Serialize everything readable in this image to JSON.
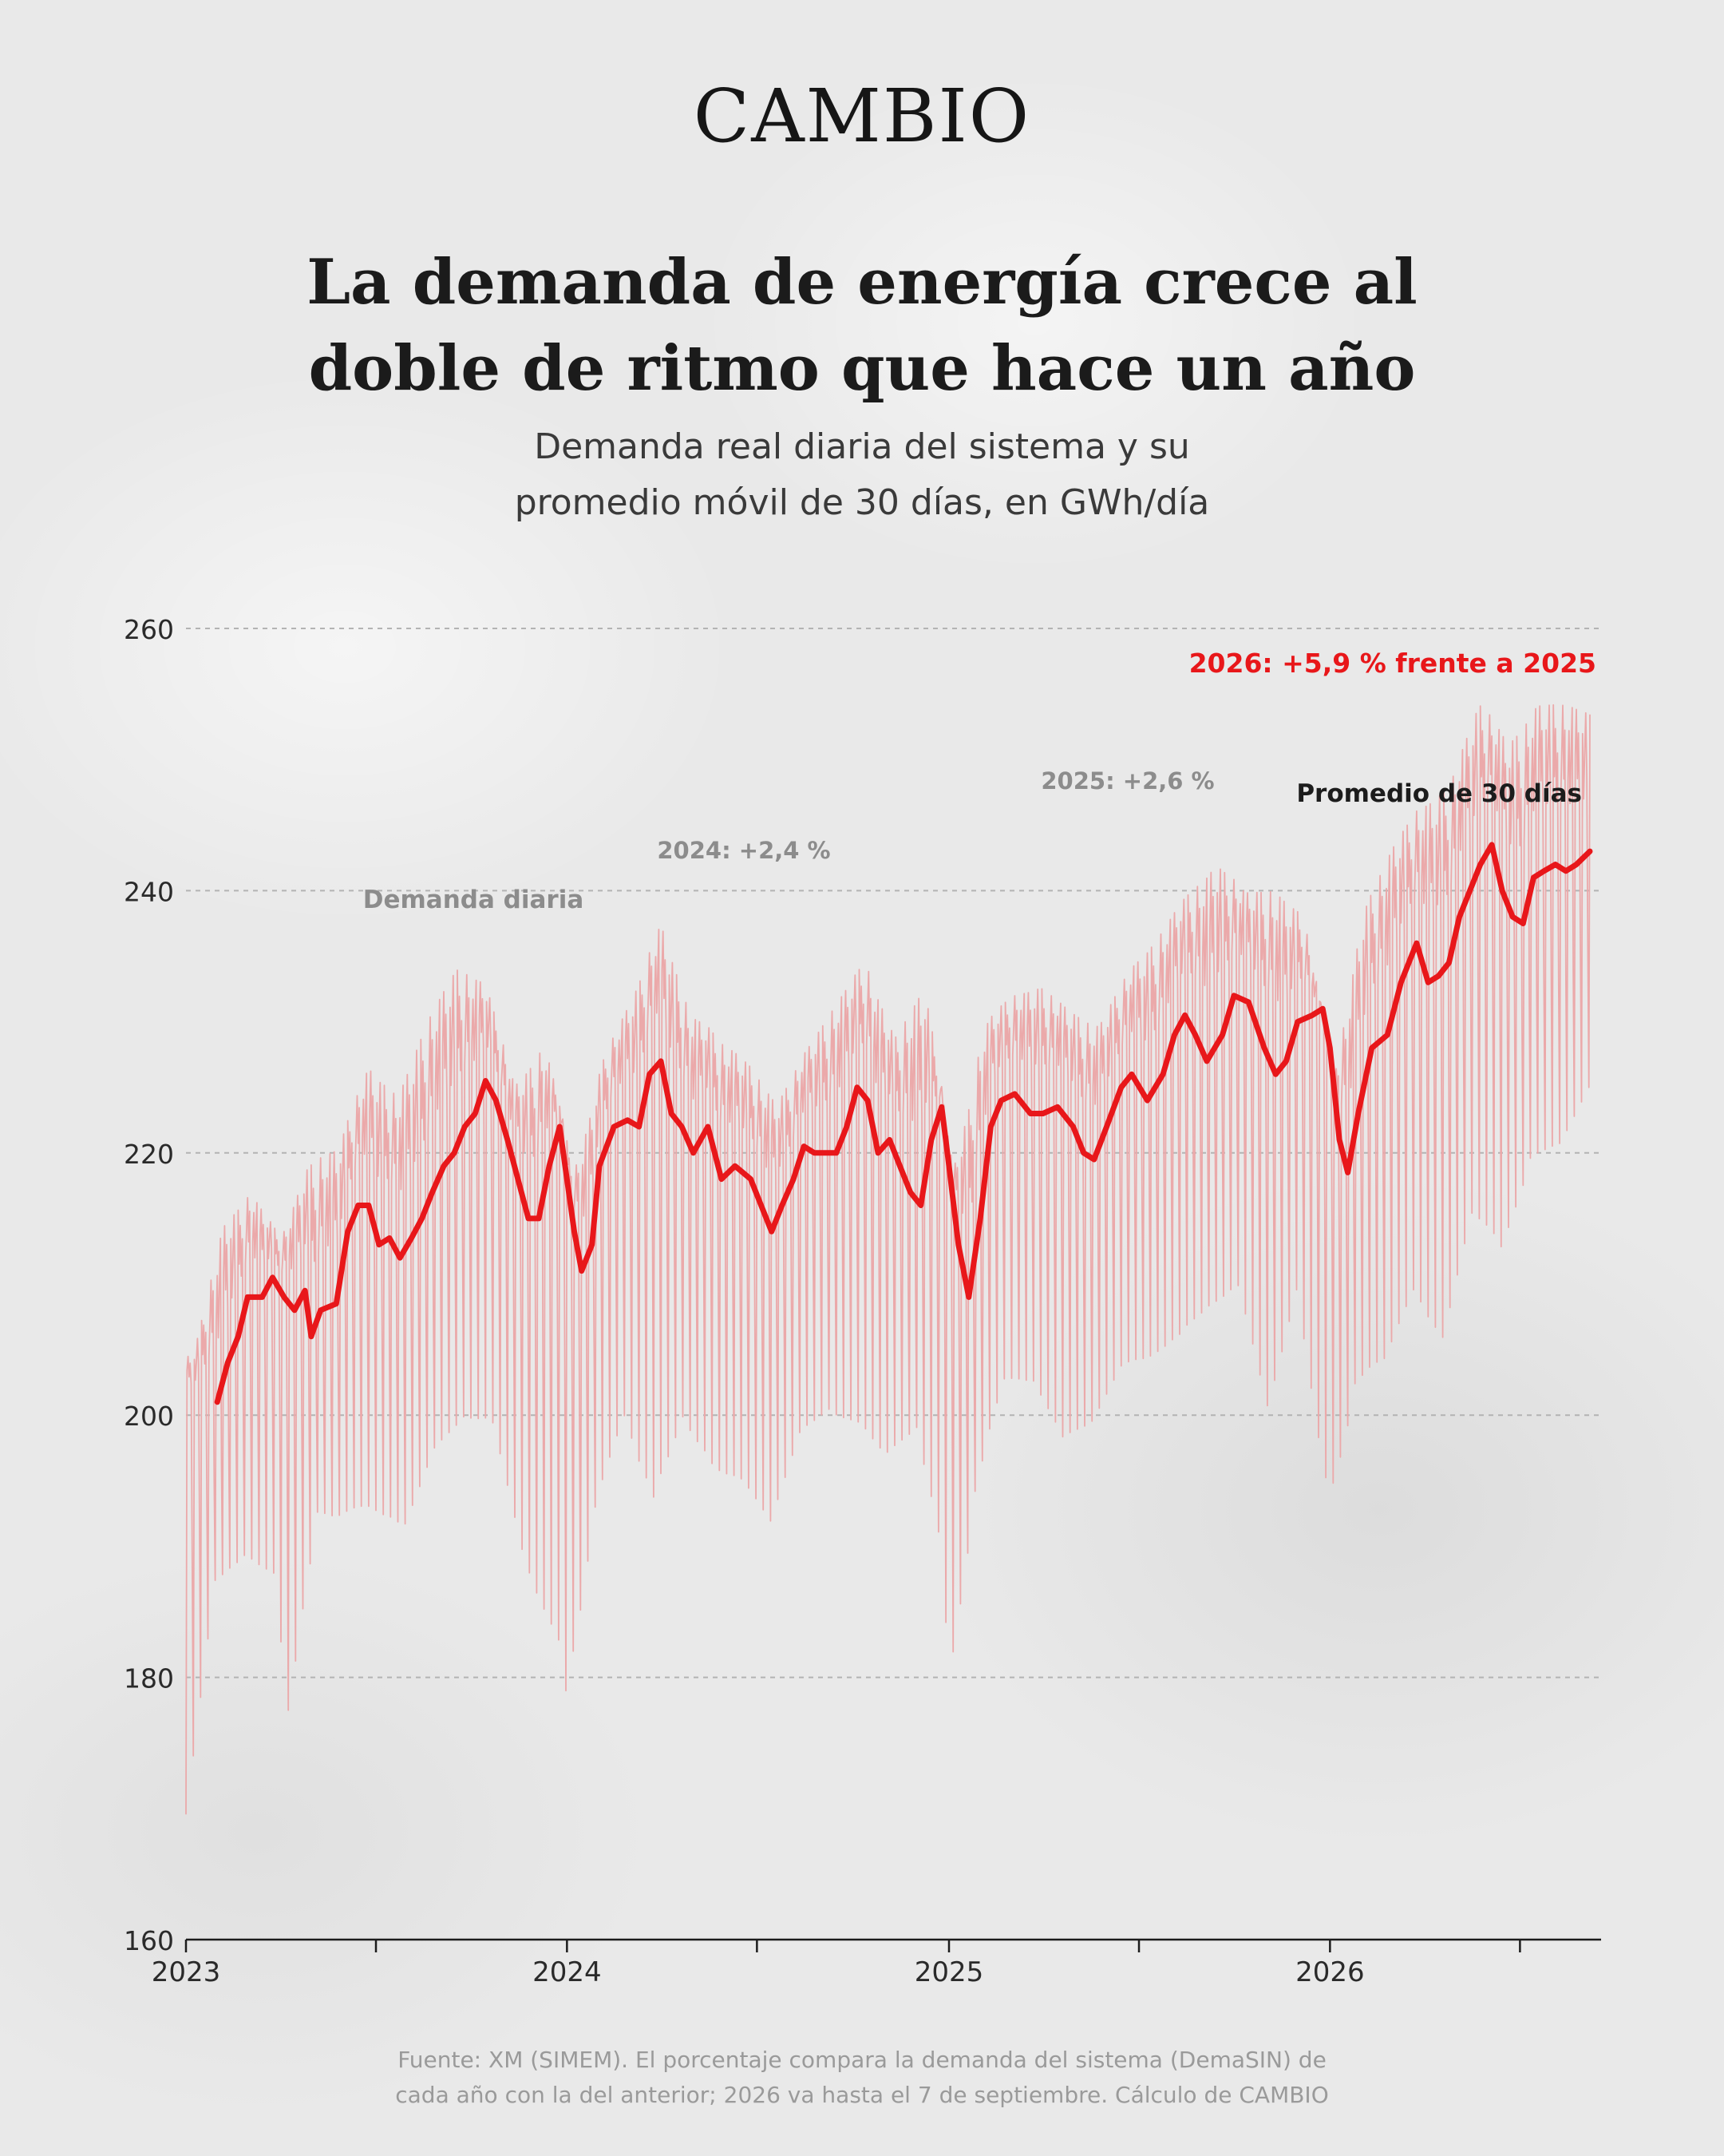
{
  "brand": "CAMBIO",
  "title_line1": "La demanda de energía crece al",
  "title_line2": "doble de ritmo que hace un año",
  "subtitle_line1": "Demanda real diaria del sistema y su",
  "subtitle_line2": "promedio móvil de 30 días, en GWh/día",
  "source_line1": "Fuente: XM (SIMEM). El porcentaje compara la demanda del sistema (DemaSIN) de",
  "source_line2": "cada año con la del anterior; 2026 va hasta el 7 de septiembre. Cálculo de CAMBIO",
  "colors": {
    "accent": "#e8171a",
    "daily_line": "#eba9aa",
    "muted_label": "#8c8c8c",
    "grid": "#b3b3b3"
  },
  "chart_data": {
    "type": "line",
    "ylim": [
      160,
      260
    ],
    "yticks": [
      "160",
      "180",
      "200",
      "220",
      "240",
      "260"
    ],
    "xlim": [
      "2023-01-01",
      "2026-09-07"
    ],
    "xticks": [
      "2023",
      "2024",
      "2025",
      "2026"
    ],
    "grid": true,
    "annotations": {
      "daily": "Demanda diaria",
      "avg": "Promedio de 30 días",
      "y2024": "2024: +2,4 %",
      "y2025": "2025: +2,6 %",
      "y2026": "2026: +5,9 % frente a 2025"
    },
    "series": [
      {
        "key": "daily",
        "weekly_peaks": [
          [
            "2023-01-08",
            205
          ],
          [
            "2023-02-05",
            216
          ],
          [
            "2023-03-05",
            218
          ],
          [
            "2023-04-02",
            214
          ],
          [
            "2023-04-30",
            221
          ],
          [
            "2023-05-28",
            222
          ],
          [
            "2023-06-25",
            228
          ],
          [
            "2023-07-23",
            226
          ],
          [
            "2023-08-20",
            232
          ],
          [
            "2023-09-17",
            236
          ],
          [
            "2023-10-15",
            234
          ],
          [
            "2023-11-12",
            226
          ],
          [
            "2023-12-10",
            230
          ],
          [
            "2024-01-07",
            219
          ],
          [
            "2024-02-04",
            228
          ],
          [
            "2024-03-03",
            233
          ],
          [
            "2024-03-31",
            239
          ],
          [
            "2024-04-28",
            232
          ],
          [
            "2024-05-26",
            230
          ],
          [
            "2024-06-23",
            228
          ],
          [
            "2024-07-21",
            225
          ],
          [
            "2024-08-18",
            229
          ],
          [
            "2024-09-15",
            233
          ],
          [
            "2024-10-13",
            236
          ],
          [
            "2024-11-10",
            230
          ],
          [
            "2024-12-08",
            235
          ],
          [
            "2025-01-05",
            219
          ],
          [
            "2025-02-02",
            231
          ],
          [
            "2025-03-02",
            233
          ],
          [
            "2025-03-30",
            234
          ],
          [
            "2025-04-27",
            232
          ],
          [
            "2025-05-25",
            231
          ],
          [
            "2025-06-22",
            235
          ],
          [
            "2025-07-20",
            238
          ],
          [
            "2025-08-17",
            241
          ],
          [
            "2025-09-14",
            244
          ],
          [
            "2025-10-12",
            241
          ],
          [
            "2025-11-09",
            242
          ],
          [
            "2025-12-07",
            239
          ],
          [
            "2026-01-04",
            226
          ],
          [
            "2026-02-01",
            240
          ],
          [
            "2026-03-01",
            245
          ],
          [
            "2026-03-29",
            248
          ],
          [
            "2026-04-26",
            250
          ],
          [
            "2026-05-24",
            256
          ],
          [
            "2026-06-21",
            253
          ],
          [
            "2026-07-19",
            256
          ],
          [
            "2026-08-16",
            256
          ],
          [
            "2026-09-07",
            255
          ]
        ],
        "weekly_lows": [
          [
            "2023-01-01",
            164
          ],
          [
            "2023-01-29",
            185
          ],
          [
            "2023-02-26",
            186
          ],
          [
            "2023-03-26",
            184
          ],
          [
            "2023-04-09",
            172
          ],
          [
            "2023-05-07",
            190
          ],
          [
            "2023-06-04",
            189
          ],
          [
            "2023-07-02",
            189
          ],
          [
            "2023-07-30",
            188
          ],
          [
            "2023-08-27",
            194
          ],
          [
            "2023-09-24",
            196
          ],
          [
            "2023-10-22",
            195
          ],
          [
            "2023-11-19",
            185
          ],
          [
            "2023-12-24",
            176
          ],
          [
            "2023-12-31",
            172
          ],
          [
            "2024-01-28",
            189
          ],
          [
            "2024-02-25",
            196
          ],
          [
            "2024-03-24",
            188
          ],
          [
            "2024-04-21",
            196
          ],
          [
            "2024-05-19",
            192
          ],
          [
            "2024-06-16",
            191
          ],
          [
            "2024-07-14",
            188
          ],
          [
            "2024-08-11",
            195
          ],
          [
            "2024-09-08",
            197
          ],
          [
            "2024-10-06",
            195
          ],
          [
            "2024-11-03",
            193
          ],
          [
            "2024-12-01",
            196
          ],
          [
            "2024-12-25",
            184
          ],
          [
            "2025-01-01",
            173
          ],
          [
            "2025-01-26",
            191
          ],
          [
            "2025-02-23",
            199
          ],
          [
            "2025-03-23",
            199
          ],
          [
            "2025-04-20",
            194
          ],
          [
            "2025-05-18",
            196
          ],
          [
            "2025-06-15",
            200
          ],
          [
            "2025-07-13",
            201
          ],
          [
            "2025-08-10",
            202
          ],
          [
            "2025-09-07",
            205
          ],
          [
            "2025-10-05",
            206
          ],
          [
            "2025-11-02",
            196
          ],
          [
            "2025-11-30",
            206
          ],
          [
            "2025-12-25",
            190
          ],
          [
            "2026-01-01",
            188
          ],
          [
            "2026-01-25",
            199
          ],
          [
            "2026-02-22",
            200
          ],
          [
            "2026-03-22",
            205
          ],
          [
            "2026-04-19",
            201
          ],
          [
            "2026-05-17",
            211
          ],
          [
            "2026-06-14",
            208
          ],
          [
            "2026-07-12",
            216
          ],
          [
            "2026-08-09",
            217
          ],
          [
            "2026-09-07",
            222
          ]
        ]
      },
      {
        "key": "avg",
        "points": [
          [
            "2023-01-31",
            201
          ],
          [
            "2023-02-10",
            204
          ],
          [
            "2023-02-20",
            206
          ],
          [
            "2023-03-01",
            209
          ],
          [
            "2023-03-15",
            209
          ],
          [
            "2023-03-25",
            210.5
          ],
          [
            "2023-04-05",
            209
          ],
          [
            "2023-04-15",
            208
          ],
          [
            "2023-04-25",
            209.5
          ],
          [
            "2023-05-01",
            206
          ],
          [
            "2023-05-10",
            208
          ],
          [
            "2023-05-25",
            208.5
          ],
          [
            "2023-06-05",
            214
          ],
          [
            "2023-06-15",
            216
          ],
          [
            "2023-06-25",
            216
          ],
          [
            "2023-07-05",
            213
          ],
          [
            "2023-07-15",
            213.5
          ],
          [
            "2023-07-25",
            212
          ],
          [
            "2023-08-05",
            213.5
          ],
          [
            "2023-08-15",
            215
          ],
          [
            "2023-08-25",
            217
          ],
          [
            "2023-09-05",
            219
          ],
          [
            "2023-09-15",
            220
          ],
          [
            "2023-09-25",
            222
          ],
          [
            "2023-10-05",
            223
          ],
          [
            "2023-10-15",
            225.5
          ],
          [
            "2023-10-25",
            224
          ],
          [
            "2023-11-05",
            221
          ],
          [
            "2023-11-15",
            218
          ],
          [
            "2023-11-25",
            215
          ],
          [
            "2023-12-05",
            215
          ],
          [
            "2023-12-15",
            219
          ],
          [
            "2023-12-25",
            222
          ],
          [
            "2024-01-01",
            218
          ],
          [
            "2024-01-08",
            214
          ],
          [
            "2024-01-15",
            211
          ],
          [
            "2024-01-25",
            213
          ],
          [
            "2024-02-01",
            219
          ],
          [
            "2024-02-15",
            222
          ],
          [
            "2024-02-28",
            222.5
          ],
          [
            "2024-03-10",
            222
          ],
          [
            "2024-03-20",
            226
          ],
          [
            "2024-03-31",
            227
          ],
          [
            "2024-04-10",
            223
          ],
          [
            "2024-04-20",
            222
          ],
          [
            "2024-05-01",
            220
          ],
          [
            "2024-05-15",
            222
          ],
          [
            "2024-05-28",
            218
          ],
          [
            "2024-06-10",
            219
          ],
          [
            "2024-06-25",
            218
          ],
          [
            "2024-07-05",
            216
          ],
          [
            "2024-07-15",
            214
          ],
          [
            "2024-07-25",
            216
          ],
          [
            "2024-08-05",
            218
          ],
          [
            "2024-08-15",
            220.5
          ],
          [
            "2024-08-25",
            220
          ],
          [
            "2024-09-05",
            220
          ],
          [
            "2024-09-15",
            220
          ],
          [
            "2024-09-25",
            222
          ],
          [
            "2024-10-05",
            225
          ],
          [
            "2024-10-15",
            224
          ],
          [
            "2024-10-25",
            220
          ],
          [
            "2024-11-05",
            221
          ],
          [
            "2024-11-15",
            219
          ],
          [
            "2024-11-25",
            217
          ],
          [
            "2024-12-05",
            216
          ],
          [
            "2024-12-15",
            221
          ],
          [
            "2024-12-25",
            223.5
          ],
          [
            "2025-01-01",
            219
          ],
          [
            "2025-01-10",
            213
          ],
          [
            "2025-01-20",
            209
          ],
          [
            "2025-01-31",
            215
          ],
          [
            "2025-02-10",
            222
          ],
          [
            "2025-02-20",
            224
          ],
          [
            "2025-03-05",
            224.5
          ],
          [
            "2025-03-20",
            223
          ],
          [
            "2025-04-01",
            223
          ],
          [
            "2025-04-15",
            223.5
          ],
          [
            "2025-04-30",
            222
          ],
          [
            "2025-05-10",
            220
          ],
          [
            "2025-05-20",
            219.5
          ],
          [
            "2025-06-01",
            222
          ],
          [
            "2025-06-15",
            225
          ],
          [
            "2025-06-25",
            226
          ],
          [
            "2025-07-10",
            224
          ],
          [
            "2025-07-25",
            226
          ],
          [
            "2025-08-05",
            229
          ],
          [
            "2025-08-15",
            230.5
          ],
          [
            "2025-08-25",
            229
          ],
          [
            "2025-09-05",
            227
          ],
          [
            "2025-09-20",
            229
          ],
          [
            "2025-10-01",
            232
          ],
          [
            "2025-10-15",
            231.5
          ],
          [
            "2025-10-30",
            228
          ],
          [
            "2025-11-10",
            226
          ],
          [
            "2025-11-20",
            227
          ],
          [
            "2025-12-01",
            230
          ],
          [
            "2025-12-15",
            230.5
          ],
          [
            "2025-12-25",
            231
          ],
          [
            "2026-01-01",
            228
          ],
          [
            "2026-01-10",
            221
          ],
          [
            "2026-01-18",
            218.5
          ],
          [
            "2026-01-28",
            223
          ],
          [
            "2026-02-10",
            228
          ],
          [
            "2026-02-25",
            229
          ],
          [
            "2026-03-10",
            233
          ],
          [
            "2026-03-25",
            236
          ],
          [
            "2026-04-05",
            233
          ],
          [
            "2026-04-15",
            233.5
          ],
          [
            "2026-04-25",
            234.5
          ],
          [
            "2026-05-05",
            238
          ],
          [
            "2026-05-15",
            240
          ],
          [
            "2026-05-25",
            242
          ],
          [
            "2026-06-05",
            243.5
          ],
          [
            "2026-06-15",
            240
          ],
          [
            "2026-06-25",
            238
          ],
          [
            "2026-07-05",
            237.5
          ],
          [
            "2026-07-15",
            241
          ],
          [
            "2026-07-25",
            241.5
          ],
          [
            "2026-08-05",
            242
          ],
          [
            "2026-08-15",
            241.5
          ],
          [
            "2026-08-25",
            242
          ],
          [
            "2026-09-07",
            243
          ]
        ]
      }
    ]
  }
}
